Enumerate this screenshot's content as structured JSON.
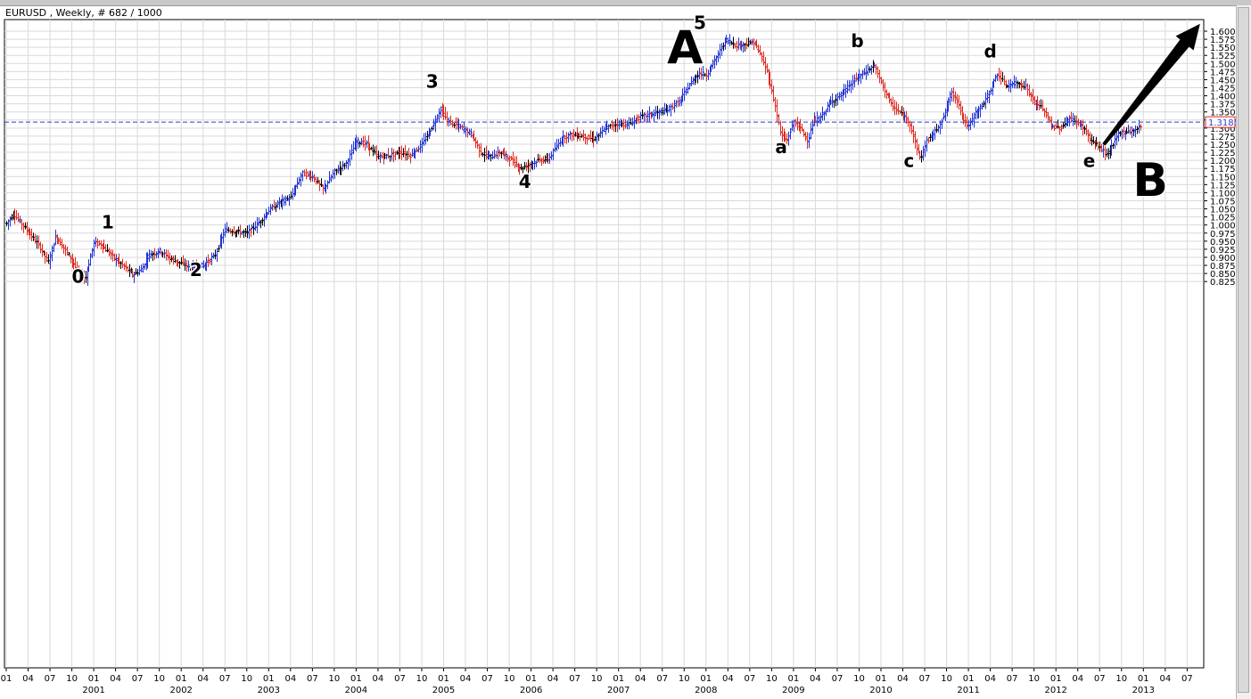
{
  "window": {
    "title": "EURUSD , Weekly, # 682 / 1000"
  },
  "chart_data": {
    "type": "bar",
    "subtype": "ohlc",
    "symbol": "EURUSD",
    "timeframe": "Weekly",
    "ylim": [
      0.81,
      1.615
    ],
    "y_ticks": [
      "1.6000",
      "1.5750",
      "1.5500",
      "1.5250",
      "1.5000",
      "1.4750",
      "1.4500",
      "1.4250",
      "1.4000",
      "1.3750",
      "1.3500",
      "1.3250",
      "1.3000",
      "1.2750",
      "1.2500",
      "1.2250",
      "1.2000",
      "1.1750",
      "1.1500",
      "1.1250",
      "1.1000",
      "1.0750",
      "1.0500",
      "1.0250",
      "1.0000",
      "0.9750",
      "0.9500",
      "0.9250",
      "0.9000",
      "0.8750",
      "0.8500",
      "0.8250"
    ],
    "x_tick_months": [
      "01",
      "04",
      "07",
      "10"
    ],
    "years": [
      "2001",
      "2002",
      "2003",
      "2004",
      "2005",
      "2006",
      "2007",
      "2008",
      "2009",
      "2010",
      "2011",
      "2012",
      "2013"
    ],
    "x_start_year": 2000,
    "x_end": 2013.58,
    "grid": true,
    "current_price": {
      "value": 1.3185,
      "label": "1.3185",
      "color": "#2a3fd1"
    },
    "colors": {
      "up": "#1f32d6",
      "down": "#e0281e",
      "neutral": "#000000",
      "grid": "#d9d9d9"
    },
    "anchors": [
      [
        2000.0,
        1.005
      ],
      [
        2000.08,
        1.035
      ],
      [
        2000.23,
        0.985
      ],
      [
        2000.36,
        0.94
      ],
      [
        2000.48,
        0.885
      ],
      [
        2000.56,
        0.965
      ],
      [
        2000.64,
        0.935
      ],
      [
        2000.74,
        0.895
      ],
      [
        2000.83,
        0.845
      ],
      [
        2000.9,
        0.835
      ],
      [
        2001.0,
        0.945
      ],
      [
        2001.08,
        0.94
      ],
      [
        2001.22,
        0.9
      ],
      [
        2001.35,
        0.87
      ],
      [
        2001.45,
        0.845
      ],
      [
        2001.55,
        0.865
      ],
      [
        2001.62,
        0.905
      ],
      [
        2001.75,
        0.92
      ],
      [
        2001.88,
        0.895
      ],
      [
        2002.0,
        0.88
      ],
      [
        2002.1,
        0.87
      ],
      [
        2002.25,
        0.875
      ],
      [
        2002.38,
        0.905
      ],
      [
        2002.5,
        0.985
      ],
      [
        2002.62,
        0.98
      ],
      [
        2002.75,
        0.975
      ],
      [
        2002.88,
        1.005
      ],
      [
        2003.0,
        1.045
      ],
      [
        2003.12,
        1.07
      ],
      [
        2003.25,
        1.085
      ],
      [
        2003.38,
        1.16
      ],
      [
        2003.5,
        1.15
      ],
      [
        2003.62,
        1.11
      ],
      [
        2003.75,
        1.165
      ],
      [
        2003.88,
        1.19
      ],
      [
        2004.0,
        1.26
      ],
      [
        2004.12,
        1.25
      ],
      [
        2004.25,
        1.21
      ],
      [
        2004.38,
        1.215
      ],
      [
        2004.5,
        1.225
      ],
      [
        2004.62,
        1.215
      ],
      [
        2004.75,
        1.25
      ],
      [
        2004.88,
        1.31
      ],
      [
        2004.96,
        1.36
      ],
      [
        2005.05,
        1.32
      ],
      [
        2005.18,
        1.305
      ],
      [
        2005.32,
        1.28
      ],
      [
        2005.42,
        1.225
      ],
      [
        2005.52,
        1.21
      ],
      [
        2005.65,
        1.225
      ],
      [
        2005.75,
        1.205
      ],
      [
        2005.88,
        1.175
      ],
      [
        2006.0,
        1.19
      ],
      [
        2006.08,
        1.2
      ],
      [
        2006.2,
        1.205
      ],
      [
        2006.35,
        1.27
      ],
      [
        2006.45,
        1.28
      ],
      [
        2006.58,
        1.275
      ],
      [
        2006.72,
        1.265
      ],
      [
        2006.85,
        1.3
      ],
      [
        2007.0,
        1.315
      ],
      [
        2007.1,
        1.31
      ],
      [
        2007.25,
        1.335
      ],
      [
        2007.4,
        1.345
      ],
      [
        2007.55,
        1.355
      ],
      [
        2007.7,
        1.385
      ],
      [
        2007.82,
        1.44
      ],
      [
        2007.92,
        1.47
      ],
      [
        2008.0,
        1.465
      ],
      [
        2008.12,
        1.52
      ],
      [
        2008.22,
        1.575
      ],
      [
        2008.35,
        1.555
      ],
      [
        2008.45,
        1.56
      ],
      [
        2008.55,
        1.565
      ],
      [
        2008.62,
        1.525
      ],
      [
        2008.7,
        1.47
      ],
      [
        2008.78,
        1.38
      ],
      [
        2008.85,
        1.28
      ],
      [
        2008.92,
        1.26
      ],
      [
        2009.0,
        1.32
      ],
      [
        2009.08,
        1.3
      ],
      [
        2009.16,
        1.26
      ],
      [
        2009.22,
        1.32
      ],
      [
        2009.3,
        1.33
      ],
      [
        2009.42,
        1.38
      ],
      [
        2009.55,
        1.405
      ],
      [
        2009.7,
        1.45
      ],
      [
        2009.85,
        1.48
      ],
      [
        2009.92,
        1.495
      ],
      [
        2010.0,
        1.44
      ],
      [
        2010.12,
        1.37
      ],
      [
        2010.22,
        1.345
      ],
      [
        2010.32,
        1.32
      ],
      [
        2010.4,
        1.24
      ],
      [
        2010.45,
        1.205
      ],
      [
        2010.52,
        1.26
      ],
      [
        2010.62,
        1.29
      ],
      [
        2010.72,
        1.34
      ],
      [
        2010.8,
        1.41
      ],
      [
        2010.88,
        1.38
      ],
      [
        2010.95,
        1.32
      ],
      [
        2011.0,
        1.305
      ],
      [
        2011.08,
        1.35
      ],
      [
        2011.16,
        1.37
      ],
      [
        2011.25,
        1.42
      ],
      [
        2011.33,
        1.47
      ],
      [
        2011.42,
        1.43
      ],
      [
        2011.55,
        1.44
      ],
      [
        2011.65,
        1.43
      ],
      [
        2011.75,
        1.38
      ],
      [
        2011.85,
        1.36
      ],
      [
        2011.95,
        1.305
      ],
      [
        2012.05,
        1.3
      ],
      [
        2012.15,
        1.33
      ],
      [
        2012.22,
        1.32
      ],
      [
        2012.32,
        1.3
      ],
      [
        2012.4,
        1.26
      ],
      [
        2012.5,
        1.24
      ],
      [
        2012.58,
        1.215
      ],
      [
        2012.66,
        1.255
      ],
      [
        2012.72,
        1.285
      ],
      [
        2012.8,
        1.29
      ],
      [
        2012.88,
        1.29
      ],
      [
        2012.95,
        1.305
      ],
      [
        2013.0,
        1.315
      ]
    ],
    "bar_range": {
      "first": 2000.0,
      "last": 2012.98
    },
    "annotations": [
      {
        "text": "0",
        "x": 2000.82,
        "y": 0.822,
        "size": "medium"
      },
      {
        "text": "1",
        "x": 2001.16,
        "y": 0.99,
        "size": "medium"
      },
      {
        "text": "2",
        "x": 2002.17,
        "y": 0.842,
        "size": "medium"
      },
      {
        "text": "3",
        "x": 2004.87,
        "y": 1.425,
        "size": "medium"
      },
      {
        "text": "4",
        "x": 2005.93,
        "y": 1.115,
        "size": "medium"
      },
      {
        "text": "5",
        "x": 2007.93,
        "y": 1.607,
        "size": "medium"
      },
      {
        "text": "A",
        "x": 2007.76,
        "y": 1.5,
        "size": "large"
      },
      {
        "text": "a",
        "x": 2008.86,
        "y": 1.222,
        "size": "medium"
      },
      {
        "text": "b",
        "x": 2009.73,
        "y": 1.55,
        "size": "medium"
      },
      {
        "text": "c",
        "x": 2010.32,
        "y": 1.18,
        "size": "medium"
      },
      {
        "text": "d",
        "x": 2011.25,
        "y": 1.518,
        "size": "medium"
      },
      {
        "text": "e",
        "x": 2012.38,
        "y": 1.18,
        "size": "medium"
      },
      {
        "text": "B",
        "x": 2013.08,
        "y": 1.09,
        "size": "large"
      }
    ],
    "arrow": {
      "from": [
        2012.55,
        1.25
      ],
      "to": [
        2013.64,
        1.62
      ]
    }
  }
}
